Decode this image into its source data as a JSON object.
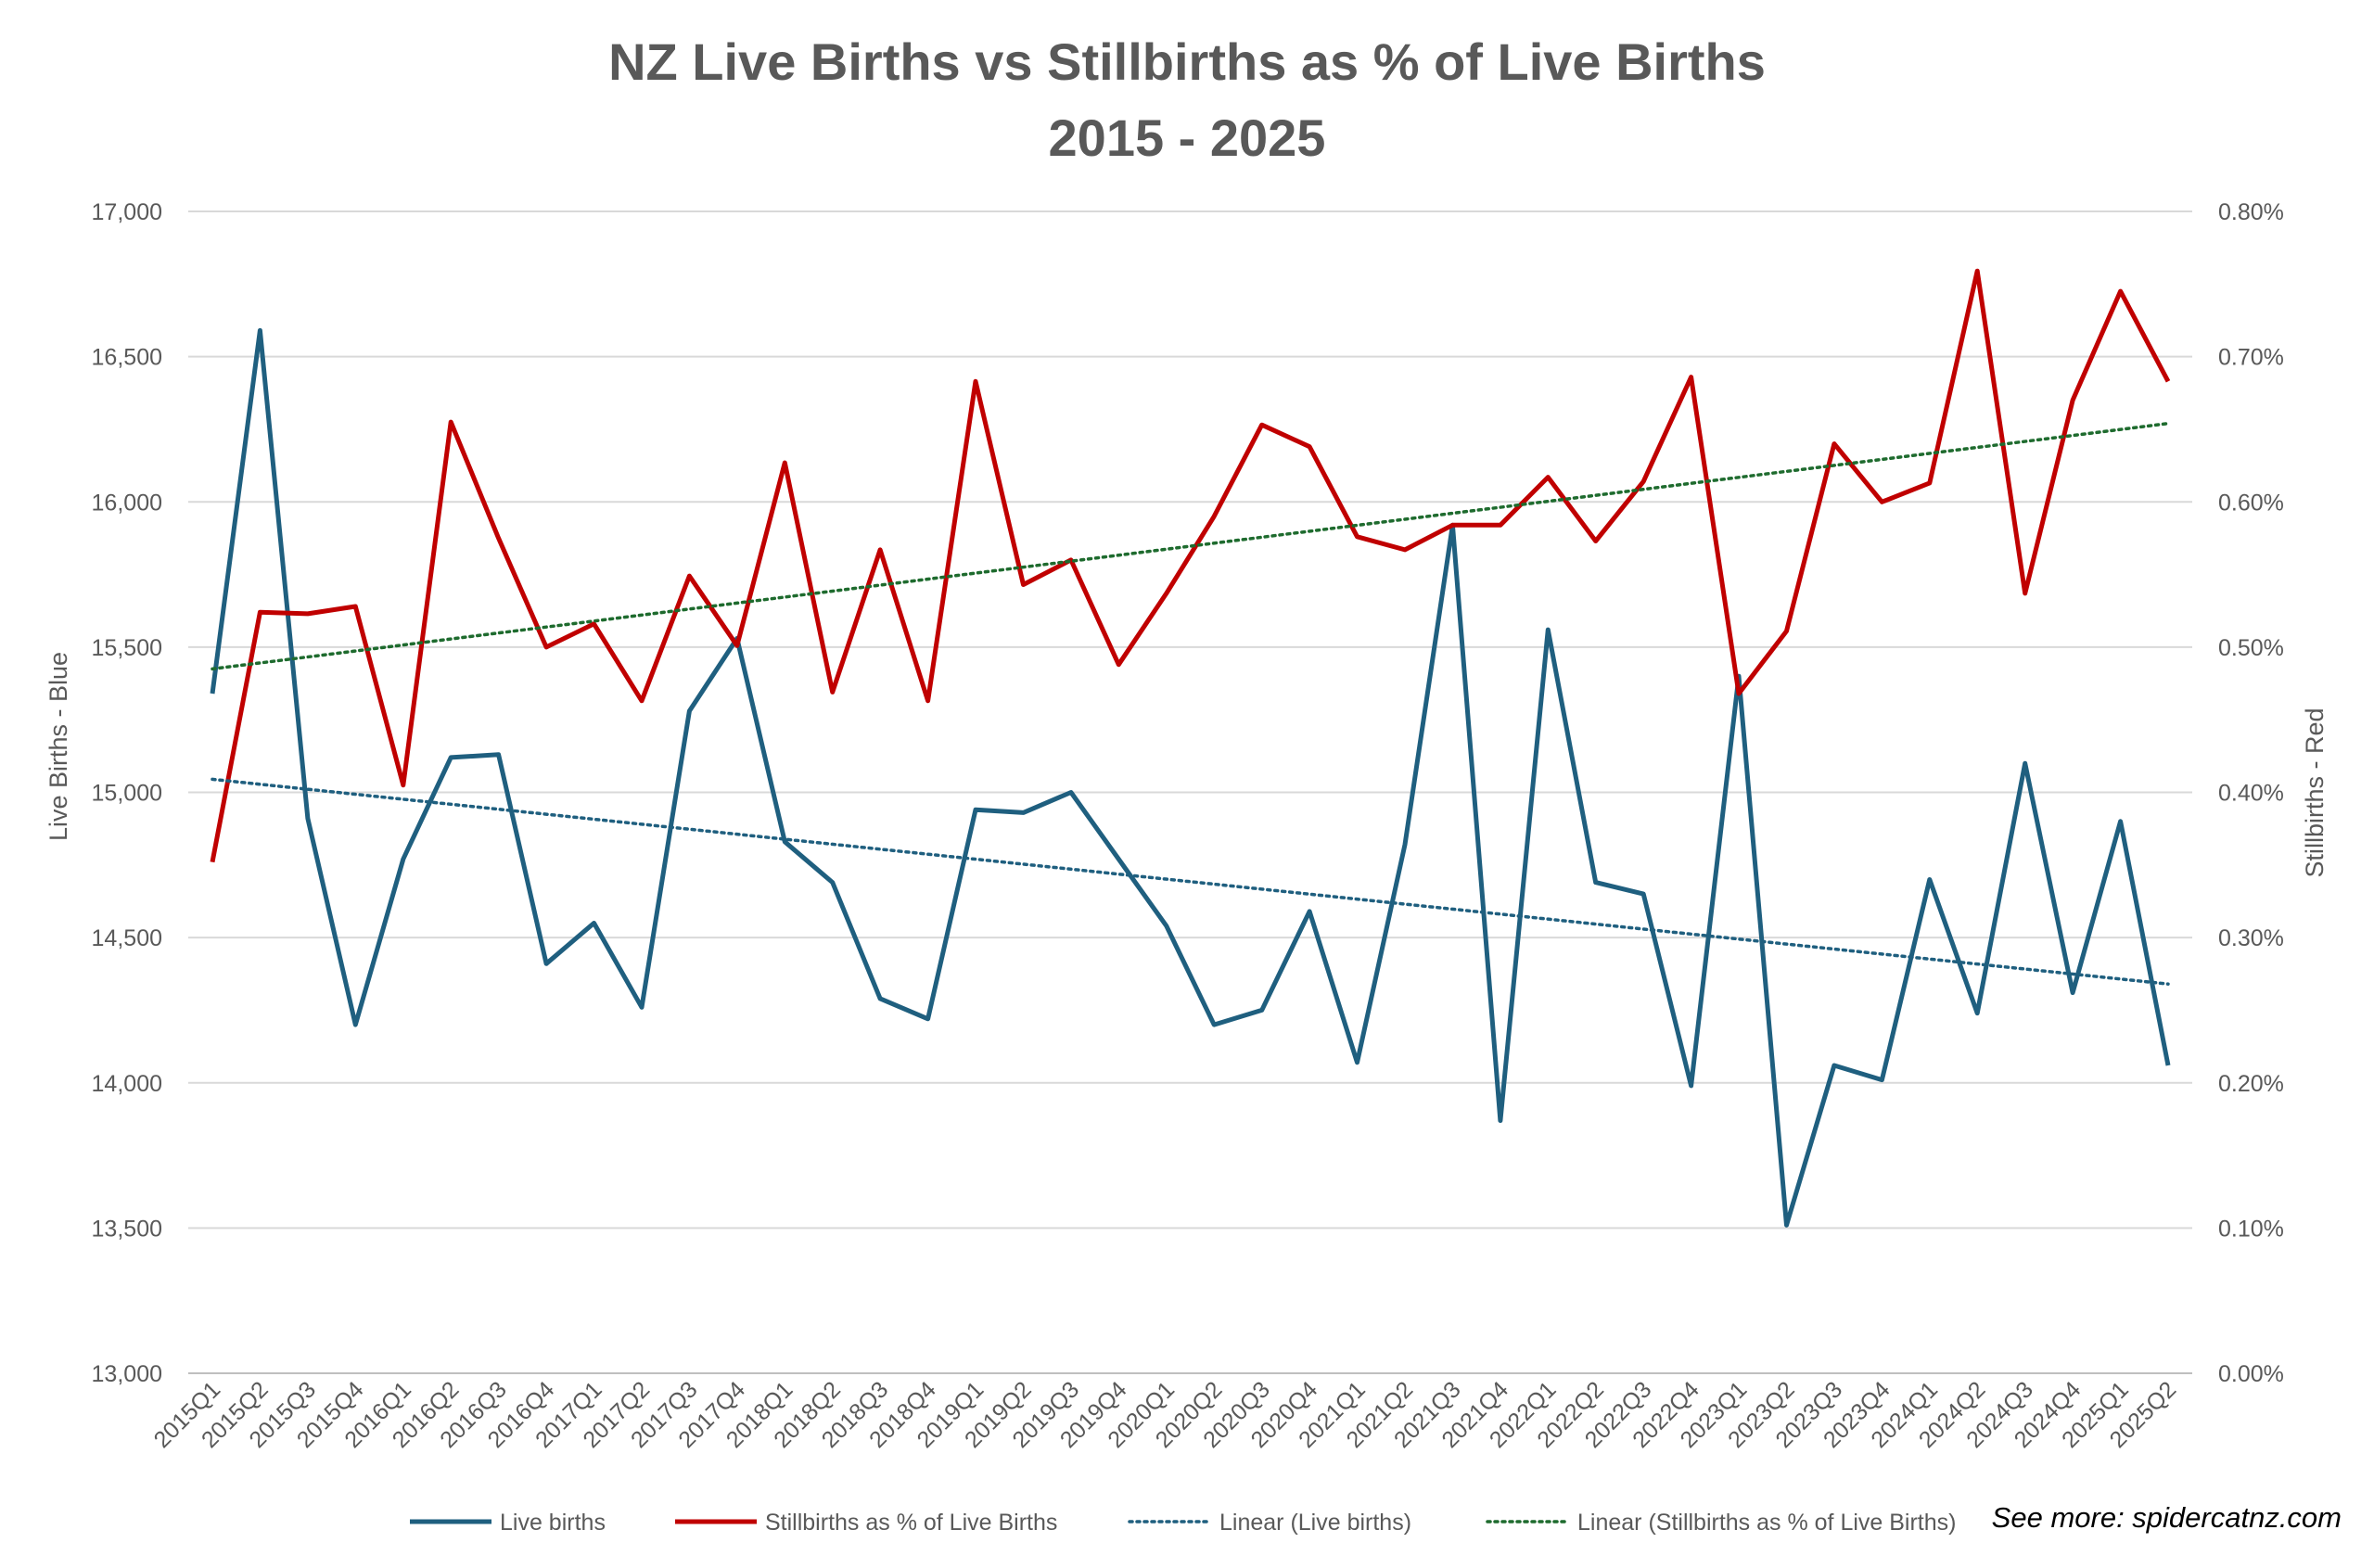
{
  "chart_data": {
    "type": "line",
    "title": "NZ Live Births vs Stillbirths as % of Live Births",
    "subtitle": "2015 - 2025",
    "ylabel": "Live Births - Blue",
    "y2label": "Stillbirths - Red",
    "ylim": [
      13000,
      17000
    ],
    "y2lim": [
      0.0,
      0.8
    ],
    "y_ticks": [
      "13,000",
      "13,500",
      "14,000",
      "14,500",
      "15,000",
      "15,500",
      "16,000",
      "16,500",
      "17,000"
    ],
    "y2_ticks": [
      "0.00%",
      "0.10%",
      "0.20%",
      "0.30%",
      "0.40%",
      "0.50%",
      "0.60%",
      "0.70%",
      "0.80%"
    ],
    "grid": true,
    "legend_position": "bottom",
    "categories": [
      "2015Q1",
      "2015Q2",
      "2015Q3",
      "2015Q4",
      "2016Q1",
      "2016Q2",
      "2016Q3",
      "2016Q4",
      "2017Q1",
      "2017Q2",
      "2017Q3",
      "2017Q4",
      "2018Q1",
      "2018Q2",
      "2018Q3",
      "2018Q4",
      "2019Q1",
      "2019Q2",
      "2019Q3",
      "2019Q4",
      "2020Q1",
      "2020Q2",
      "2020Q3",
      "2020Q4",
      "2021Q1",
      "2021Q2",
      "2021Q3",
      "2021Q4",
      "2022Q1",
      "2022Q2",
      "2022Q3",
      "2022Q4",
      "2023Q1",
      "2023Q2",
      "2023Q3",
      "2023Q4",
      "2024Q1",
      "2024Q2",
      "2024Q3",
      "2024Q4",
      "2025Q1",
      "2025Q2"
    ],
    "series": [
      {
        "name": "Live births",
        "axis": "left",
        "color": "#1F5F7F",
        "style": "solid",
        "values": [
          15340,
          16590,
          14910,
          14200,
          14770,
          15120,
          15130,
          14410,
          14550,
          14260,
          15280,
          15530,
          14830,
          14690,
          14290,
          14220,
          14940,
          14930,
          15000,
          14770,
          14540,
          14200,
          14250,
          14590,
          14070,
          14820,
          15920,
          13870,
          15560,
          14690,
          14650,
          13990,
          15400,
          13510,
          14060,
          14010,
          14700,
          14240,
          15100,
          14310,
          14900,
          14060
        ]
      },
      {
        "name": "Stillbirths as % of Live Births",
        "axis": "right",
        "color": "#C00000",
        "style": "solid",
        "values": [
          0.352,
          0.524,
          0.523,
          0.528,
          0.405,
          0.655,
          0.575,
          0.5,
          0.516,
          0.463,
          0.549,
          0.501,
          0.627,
          0.469,
          0.567,
          0.463,
          0.683,
          0.543,
          0.56,
          0.488,
          0.537,
          0.59,
          0.653,
          0.638,
          0.576,
          0.567,
          0.584,
          0.584,
          0.617,
          0.573,
          0.614,
          0.686,
          0.468,
          0.511,
          0.64,
          0.6,
          0.613,
          0.759,
          0.537,
          0.67,
          0.745,
          0.683
        ]
      },
      {
        "name": "Linear (Live births)",
        "axis": "left",
        "color": "#1F5F7F",
        "style": "dotted",
        "trend_start": 15045,
        "trend_end": 14340
      },
      {
        "name": "Linear (Stillbirths as % of Live Births)",
        "axis": "right",
        "color": "#1E6B2E",
        "style": "dotted",
        "trend_start": 0.485,
        "trend_end": 0.654
      }
    ],
    "annotation": "See more: spidercatnz.com"
  }
}
